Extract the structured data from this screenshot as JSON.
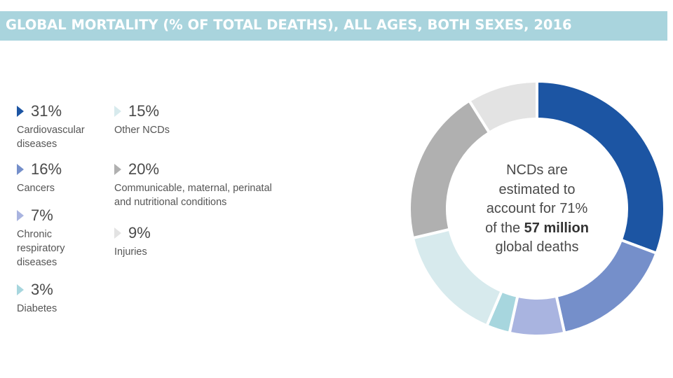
{
  "title": "GLOBAL MORTALITY (% OF TOTAL DEATHS), ALL AGES, BOTH SEXES, 2016",
  "colors": {
    "title_bar": "#a9d4dd",
    "cardiovascular": "#1c55a3",
    "cancers": "#758fca",
    "chronic_respiratory": "#a9b4e0",
    "diabetes": "#a7d6de",
    "other_ncds": "#d7eaed",
    "communicable": "#b0b0b0",
    "injuries": "#e3e3e3"
  },
  "legend": [
    {
      "pct": "31%",
      "label": [
        "Cardiovascular",
        "diseases"
      ],
      "color_key": "cardiovascular"
    },
    {
      "pct": "16%",
      "label": [
        "Cancers"
      ],
      "color_key": "cancers"
    },
    {
      "pct": "7%",
      "label": [
        "Chronic",
        "respiratory",
        "diseases"
      ],
      "color_key": "chronic_respiratory"
    },
    {
      "pct": "3%",
      "label": [
        "Diabetes"
      ],
      "color_key": "diabetes"
    },
    {
      "pct": "15%",
      "label": [
        "Other NCDs"
      ],
      "color_key": "other_ncds"
    },
    {
      "pct": "20%",
      "label": [
        "Communicable, maternal, perinatal",
        "and nutritional conditions"
      ],
      "color_key": "communicable"
    },
    {
      "pct": "9%",
      "label": [
        "Injuries"
      ],
      "color_key": "injuries"
    }
  ],
  "center_text": {
    "line1": "NCDs are",
    "line2": "estimated to",
    "line3": "account for 71%",
    "line4_prefix": "of the ",
    "line4_bold": "57 million",
    "line5": "global deaths"
  },
  "chart_data": {
    "type": "pie",
    "donut": true,
    "title": "GLOBAL MORTALITY (% OF TOTAL DEATHS), ALL AGES, BOTH SEXES, 2016",
    "categories": [
      "Cardiovascular diseases",
      "Cancers",
      "Chronic respiratory diseases",
      "Diabetes",
      "Other NCDs",
      "Communicable, maternal, perinatal and nutritional conditions",
      "Injuries"
    ],
    "values": [
      31,
      16,
      7,
      3,
      15,
      20,
      9
    ],
    "unit": "%",
    "slice_colors": [
      "#1c55a3",
      "#758fca",
      "#a9b4e0",
      "#a7d6de",
      "#d7eaed",
      "#b0b0b0",
      "#e3e3e3"
    ],
    "start": "top, clockwise",
    "legend_placement": "left"
  }
}
